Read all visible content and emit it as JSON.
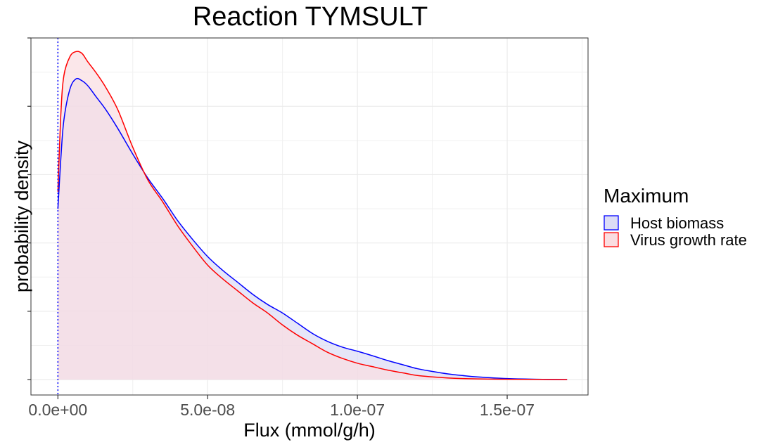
{
  "chart_data": {
    "type": "area",
    "title": "Reaction TYMSULT",
    "xlabel": "Flux (mmol/g/h)",
    "ylabel": "probability density",
    "x_ticks": [
      0,
      5e-08,
      1e-07,
      1.5e-07
    ],
    "x_tick_labels": [
      "0.0e+00",
      "5.0e-08",
      "1.0e-07",
      "1.5e-07"
    ],
    "y_tick_count": 6,
    "y_tick_labels_shown": false,
    "xlim": [
      -9e-09,
      1.77e-07
    ],
    "ylim": [
      -0.45,
      10.0
    ],
    "grid": true,
    "vline": {
      "x": 0,
      "style": "dotted",
      "color": "#0000ff"
    },
    "legend": {
      "title": "Maximum",
      "position": "right",
      "entries": [
        "Host biomass",
        "Virus growth rate"
      ]
    },
    "series": [
      {
        "name": "Host biomass",
        "color": "#0000ff",
        "fill": "#dcdcf5",
        "x": [
          0,
          1e-09,
          2e-09,
          4e-09,
          6e-09,
          8e-09,
          1e-08,
          1.3e-08,
          1.6e-08,
          2e-08,
          2.5e-08,
          3e-08,
          3.5e-08,
          4e-08,
          4.5e-08,
          5e-08,
          5.5e-08,
          6e-08,
          6.5e-08,
          7e-08,
          7.5e-08,
          8e-08,
          8.5e-08,
          9e-08,
          9.5e-08,
          1e-07,
          1.05e-07,
          1.1e-07,
          1.15e-07,
          1.2e-07,
          1.25e-07,
          1.3e-07,
          1.35e-07,
          1.4e-07,
          1.5e-07,
          1.6e-07,
          1.7e-07
        ],
        "y": [
          5.0,
          6.5,
          7.6,
          8.5,
          8.8,
          8.75,
          8.6,
          8.25,
          7.9,
          7.35,
          6.6,
          5.9,
          5.3,
          4.65,
          4.1,
          3.6,
          3.2,
          2.85,
          2.5,
          2.2,
          1.95,
          1.65,
          1.35,
          1.12,
          0.95,
          0.83,
          0.7,
          0.56,
          0.44,
          0.32,
          0.24,
          0.17,
          0.12,
          0.08,
          0.03,
          0.01,
          0.0
        ]
      },
      {
        "name": "Virus growth rate",
        "color": "#ff0000",
        "fill": "#fadde1",
        "x": [
          0,
          1e-09,
          2e-09,
          4e-09,
          6e-09,
          8e-09,
          1e-08,
          1.3e-08,
          1.6e-08,
          2e-08,
          2.5e-08,
          3e-08,
          3.5e-08,
          4e-08,
          4.5e-08,
          5e-08,
          5.5e-08,
          6e-08,
          6.5e-08,
          7e-08,
          7.5e-08,
          8e-08,
          8.5e-08,
          9e-08,
          9.5e-08,
          1e-07,
          1.05e-07,
          1.1e-07,
          1.15e-07,
          1.2e-07,
          1.25e-07,
          1.3e-07,
          1.35e-07,
          1.4e-07,
          1.5e-07,
          1.6e-07,
          1.7e-07
        ],
        "y": [
          5.5,
          7.8,
          8.9,
          9.45,
          9.6,
          9.55,
          9.3,
          8.95,
          8.55,
          7.9,
          6.8,
          5.85,
          5.2,
          4.5,
          3.9,
          3.35,
          2.95,
          2.6,
          2.25,
          1.95,
          1.6,
          1.3,
          1.05,
          0.8,
          0.62,
          0.48,
          0.38,
          0.28,
          0.2,
          0.12,
          0.08,
          0.05,
          0.03,
          0.02,
          0.01,
          0.005,
          0.0
        ]
      }
    ]
  }
}
